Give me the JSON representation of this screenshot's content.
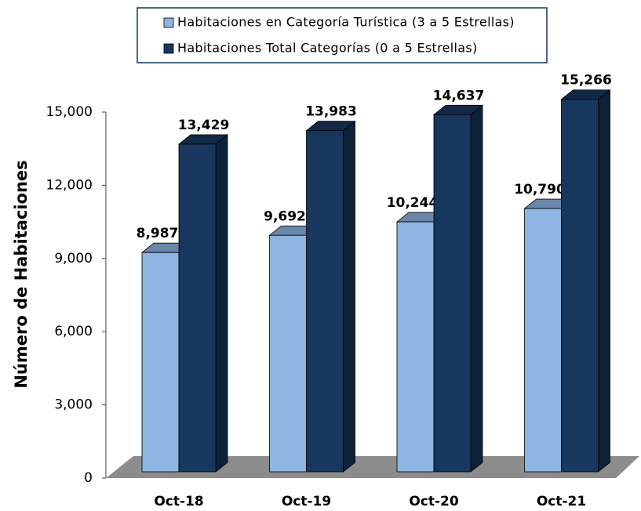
{
  "chart_data": {
    "type": "bar3d",
    "y_axis_label": "Número de Habitaciones",
    "categories": [
      "Oct-18",
      "Oct-19",
      "Oct-20",
      "Oct-21"
    ],
    "series": [
      {
        "name": "Habitaciones en Categoría Turística (3 a 5 Estrellas)",
        "color": "#8db4e2",
        "values": [
          8987,
          9692,
          10244,
          10790
        ],
        "value_labels": [
          "8,987",
          "9,692",
          "10,244",
          "10,790"
        ]
      },
      {
        "name": "Habitaciones Total Categorías (0 a 5 Estrellas)",
        "color": "#17375e",
        "values": [
          13429,
          13983,
          14637,
          15266
        ],
        "value_labels": [
          "13,429",
          "13,983",
          "14,637",
          "15,266"
        ]
      }
    ],
    "ylim": [
      0,
      15000
    ],
    "yticks": [
      0,
      {
        "value": 3000,
        "label": "3,000"
      },
      {
        "value": 6000,
        "label": "6,000"
      },
      {
        "value": 9000,
        "label": "9,000"
      },
      {
        "value": 12000,
        "label": "12,000"
      },
      {
        "value": 15000,
        "label": "15,000"
      }
    ],
    "legend": "top"
  }
}
